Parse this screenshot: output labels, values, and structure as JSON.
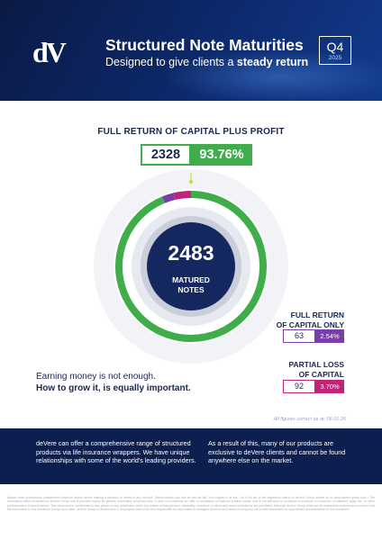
{
  "header": {
    "logo_text": "dV",
    "title": "Structured Note Maturities",
    "subtitle_prefix": "Designed to give clients a ",
    "subtitle_bold": "steady return",
    "quarter": "Q4",
    "year": "2025"
  },
  "chart_data": {
    "type": "donut",
    "title": "FULL RETURN OF CAPITAL PLUS PROFIT",
    "total": 2483,
    "center_label": "MATURED NOTES",
    "segments": [
      {
        "name": "FULL RETURN OF CAPITAL PLUS PROFIT",
        "count": 2328,
        "percent": 93.76,
        "color": "#3fae4a",
        "percent_label": "93.76%"
      },
      {
        "name": "FULL RETURN OF CAPITAL ONLY",
        "count": 63,
        "percent": 2.54,
        "color": "#7a3ea8",
        "percent_label": "2.54%"
      },
      {
        "name": "PARTIAL LOSS OF CAPITAL",
        "count": 92,
        "percent": 3.7,
        "color": "#c02378",
        "percent_label": "3.70%"
      }
    ]
  },
  "labels": {
    "full_only_line1": "FULL RETURN",
    "full_only_line2": "OF CAPITAL ONLY",
    "loss_line1": "PARTIAL LOSS",
    "loss_line2": "OF CAPITAL",
    "center_line1": "MATURED",
    "center_line2": "NOTES"
  },
  "tagline": {
    "line1": "Earning money is not enough.",
    "line2": "How to grow it, is equally important."
  },
  "note": "All figures correct as at: 06.01.26",
  "band": {
    "left": "deVere can offer a comprehensive range of structured products via life insurance wrappers. We have unique relationships with some of the world's leading providers.",
    "right": "As a result of this, many of our products are exclusive to deVere clients and cannot be found anywhere else on the market."
  },
  "disclaimer": "Always seek professional independent financial advice before making a decision to invest in any product. Stocks/shares can rise as well as fall. Your capital is at risk. For a full list of the regulatory status of deVere Group please go to www.devere-group.com • The information within is issued by deVere Group and is provided solely for general information purposes only. It does not constitute an offer or solicitation of financial product advice and is not intended to constitute a provision of insurance, investment, legal, tax, or other professional or financial advice. This document is not directed to any person in any jurisdiction where (by reason of that person's nationality, residence or otherwise) such publications are prohibited. Although deVere Group shall use all reasonable endeavours to ensure that the information in this document is kept up-to-date, deVere Group or its directors or employees cannot be held responsible for any losses or damages incurred as a result of using any out of date information or superseded documentation in this document.",
  "colors": {
    "navy": "#0d1f4e",
    "green": "#3fae4a",
    "purple": "#7a3ea8",
    "magenta": "#c02378"
  }
}
